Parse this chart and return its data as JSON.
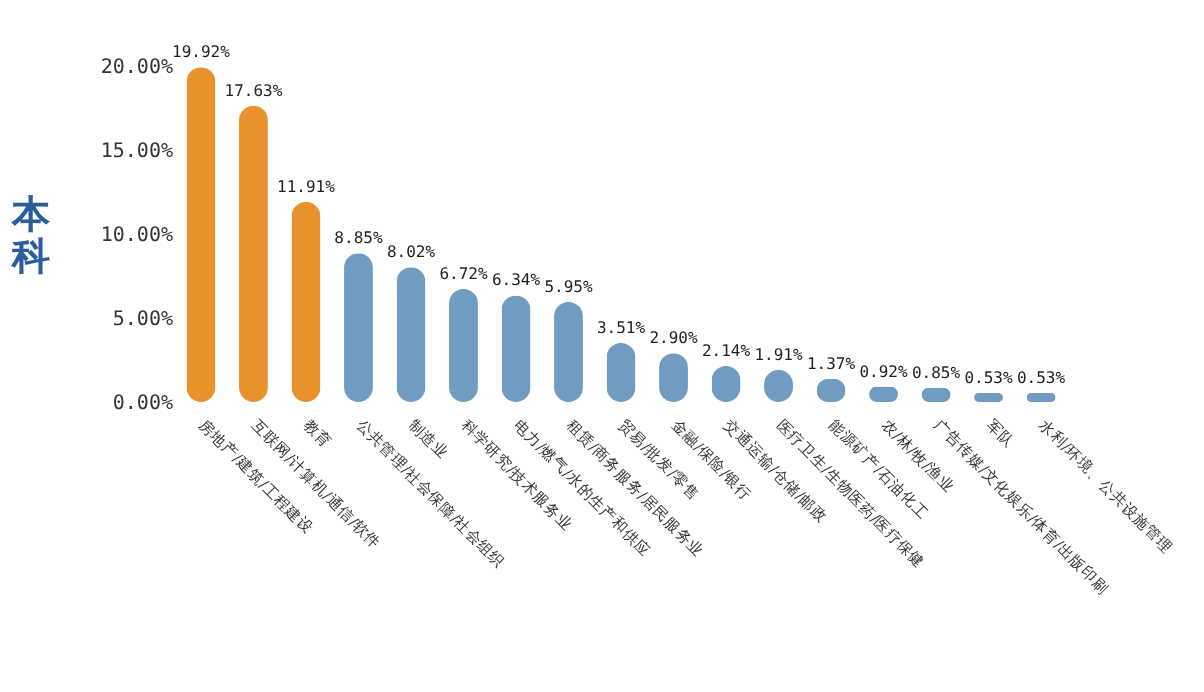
{
  "chart_data": {
    "type": "bar",
    "ylabel": "本科",
    "categories": [
      "房地产/建筑/工程建设",
      "互联网/计算机/通信/软件",
      "教育",
      "公共管理/社会保障/社会组织",
      "制造业",
      "科学研究/技术服务业",
      "电力/燃气/水的生产和供应",
      "租赁/商务服务/居民服务业",
      "贸易/批发/零售",
      "金融/保险/银行",
      "交通运输/仓储/邮政",
      "医疗卫生/生物医药/医疗保健",
      "能源矿产/石油化工",
      "农/林/牧/渔业",
      "广告传媒/文化娱乐/体育/出版印刷",
      "军队",
      "水利/环境、公共设施管理"
    ],
    "values": [
      19.92,
      17.63,
      11.91,
      8.85,
      8.02,
      6.72,
      6.34,
      5.95,
      3.51,
      2.9,
      2.14,
      1.91,
      1.37,
      0.92,
      0.85,
      0.53,
      0.53
    ],
    "value_labels": [
      "19.92%",
      "17.63%",
      "11.91%",
      "8.85%",
      "8.02%",
      "6.72%",
      "6.34%",
      "5.95%",
      "3.51%",
      "2.90%",
      "2.14%",
      "1.91%",
      "1.37%",
      "0.92%",
      "0.85%",
      "0.53%",
      "0.53%"
    ],
    "colors": [
      "#e8922e",
      "#e8922e",
      "#e8922e",
      "#6f9cc0",
      "#6f9cc0",
      "#6f9cc0",
      "#6f9cc0",
      "#6f9cc0",
      "#6f9cc0",
      "#6f9cc0",
      "#6f9cc0",
      "#6f9cc0",
      "#6f9cc0",
      "#6f9cc0",
      "#6f9cc0",
      "#6f9cc0",
      "#6f9cc0"
    ],
    "ylim": [
      0,
      20
    ],
    "yticks": [
      {
        "value": 0,
        "label": "0.00%"
      },
      {
        "value": 5,
        "label": "5.00%"
      },
      {
        "value": 10,
        "label": "10.00%"
      },
      {
        "value": 15,
        "label": "15.00%"
      },
      {
        "value": 20,
        "label": "20.00%"
      }
    ],
    "grid": false,
    "legend": false
  }
}
